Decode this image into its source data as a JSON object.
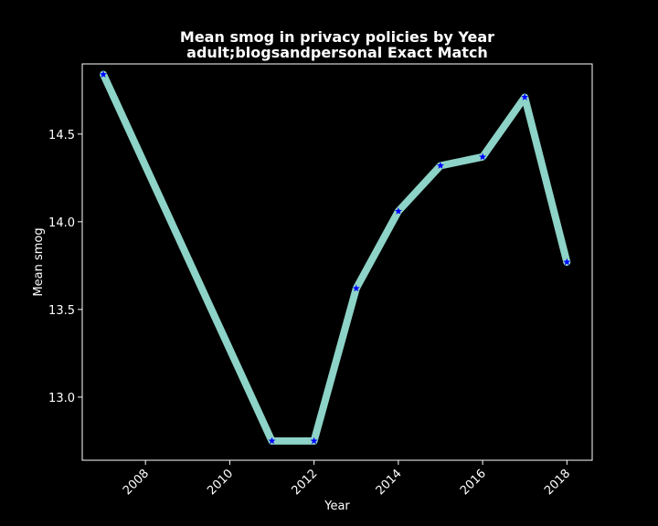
{
  "chart_data": {
    "type": "line",
    "title": "Mean smog in privacy policies by Year",
    "subtitle": "adult;blogsandpersonal Exact Match",
    "xlabel": "Year",
    "ylabel": "Mean smog",
    "x": [
      2007,
      2011,
      2012,
      2013,
      2014,
      2015,
      2016,
      2017,
      2018
    ],
    "y": [
      14.84,
      12.75,
      12.75,
      13.62,
      14.06,
      14.32,
      14.37,
      14.71,
      13.77
    ],
    "xlim": [
      2006.5,
      2018.6
    ],
    "ylim": [
      12.64,
      14.9
    ],
    "xticks": [
      2008,
      2010,
      2012,
      2014,
      2016,
      2018
    ],
    "yticks": [
      13.0,
      13.5,
      14.0,
      14.5
    ],
    "ytick_labels": [
      "13.0",
      "13.5",
      "14.0",
      "14.5"
    ],
    "grid": false,
    "colors": {
      "background": "#000000",
      "line": "#8dd3c7",
      "marker": "#0000ff",
      "text": "#ffffff"
    },
    "marker": "star"
  }
}
